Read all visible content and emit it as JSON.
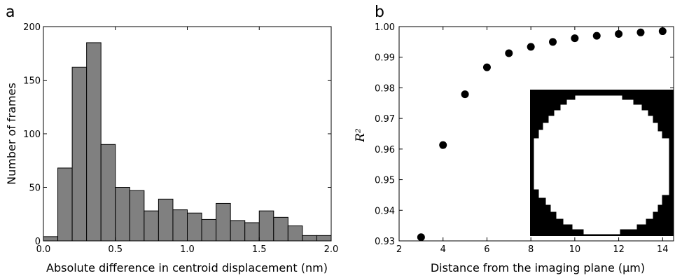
{
  "chart_data": [
    {
      "panel_label": "a",
      "type": "bar",
      "xlabel": "Absolute difference in centroid displacement (nm)",
      "ylabel": "Number of frames",
      "xlim": [
        0.0,
        2.0
      ],
      "ylim": [
        0,
        200
      ],
      "xticks": [
        "0.0",
        "0.5",
        "1.0",
        "1.5",
        "2.0"
      ],
      "yticks": [
        "0",
        "50",
        "100",
        "150",
        "200"
      ],
      "bin_width": 0.1,
      "bins": [
        {
          "x0": 0.0,
          "value": 4
        },
        {
          "x0": 0.1,
          "value": 68
        },
        {
          "x0": 0.2,
          "value": 162
        },
        {
          "x0": 0.3,
          "value": 185
        },
        {
          "x0": 0.4,
          "value": 90
        },
        {
          "x0": 0.5,
          "value": 50
        },
        {
          "x0": 0.6,
          "value": 47
        },
        {
          "x0": 0.7,
          "value": 28
        },
        {
          "x0": 0.8,
          "value": 39
        },
        {
          "x0": 0.9,
          "value": 29
        },
        {
          "x0": 1.0,
          "value": 26
        },
        {
          "x0": 1.1,
          "value": 20
        },
        {
          "x0": 1.2,
          "value": 35
        },
        {
          "x0": 1.3,
          "value": 19
        },
        {
          "x0": 1.4,
          "value": 17
        },
        {
          "x0": 1.5,
          "value": 28
        },
        {
          "x0": 1.6,
          "value": 22
        },
        {
          "x0": 1.7,
          "value": 14
        },
        {
          "x0": 1.8,
          "value": 5
        },
        {
          "x0": 1.9,
          "value": 5
        }
      ],
      "bar_color": "#808080",
      "grid": false
    },
    {
      "panel_label": "b",
      "type": "scatter",
      "xlabel": "Distance from the imaging plane (μm)",
      "ylabel": "R²",
      "xlim": [
        2,
        14.5
      ],
      "ylim": [
        0.93,
        1.0
      ],
      "xticks": [
        "2",
        "4",
        "6",
        "8",
        "10",
        "12",
        "14"
      ],
      "yticks": [
        "0.93",
        "0.94",
        "0.95",
        "0.96",
        "0.97",
        "0.98",
        "0.99",
        "1.00"
      ],
      "series": [
        {
          "x": [
            3,
            4,
            5,
            6,
            7,
            8,
            9,
            10,
            11,
            12,
            13,
            14
          ],
          "y": [
            0.9312,
            0.9613,
            0.9779,
            0.9867,
            0.9913,
            0.9934,
            0.995,
            0.9962,
            0.997,
            0.9976,
            0.9981,
            0.9985
          ]
        }
      ],
      "marker_color": "#000000",
      "grid": false,
      "inset": "black-and-white binary image of a circular mask"
    }
  ]
}
